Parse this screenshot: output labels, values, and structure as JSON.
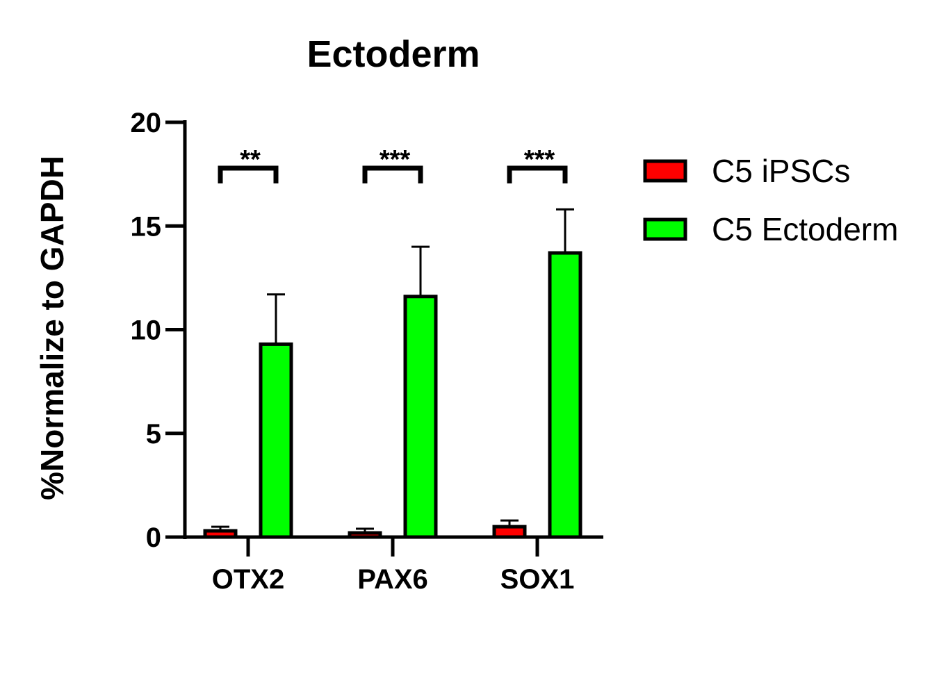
{
  "chart_data": {
    "type": "bar",
    "title": "Ectoderm",
    "xlabel": "",
    "ylabel": "%Normalize to GAPDH",
    "ylim": [
      0,
      20
    ],
    "yticks": [
      0,
      5,
      10,
      15,
      20
    ],
    "categories": [
      "OTX2",
      "PAX6",
      "SOX1"
    ],
    "series": [
      {
        "name": "C5 iPSCs",
        "color": "#ff0000",
        "values": [
          0.3,
          0.2,
          0.5
        ],
        "errors": [
          0.2,
          0.2,
          0.3
        ]
      },
      {
        "name": "C5 Ectoderm",
        "color": "#00ff00",
        "values": [
          9.3,
          11.6,
          13.7
        ],
        "errors": [
          2.4,
          2.4,
          2.1
        ]
      }
    ],
    "significance": [
      "**",
      "***",
      "***"
    ],
    "legend": "right",
    "grid": false
  }
}
